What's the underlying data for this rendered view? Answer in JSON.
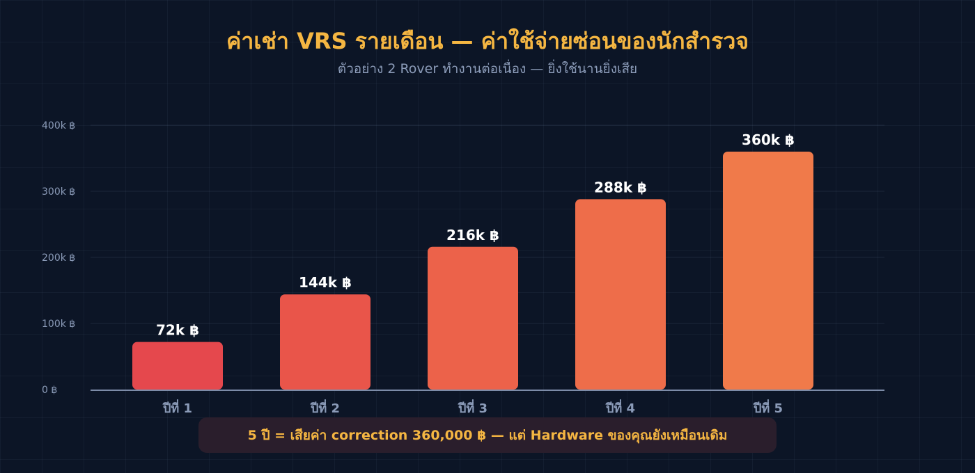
{
  "header": {
    "title": "ค่าเช่า VRS รายเดือน — ค่าใช้จ่ายซ่อนของนักสำรวจ",
    "subtitle": "ตัวอย่าง 2 Rover ทำงานต่อเนื่อง — ยิ่งใช้นานยิ่งเสีย"
  },
  "callout": {
    "text": "5 ปี = เสียค่า correction 360,000 ฿ — แต่ Hardware ของคุณยังเหมือนเดิม"
  },
  "colors": {
    "title": "#f5b642",
    "bar_start": "#e5484d",
    "bar_end": "#f07a4a"
  },
  "chart_data": {
    "type": "bar",
    "categories": [
      "ปีที่ 1",
      "ปีที่ 2",
      "ปีที่ 3",
      "ปีที่ 4",
      "ปีที่ 5"
    ],
    "values": [
      72000,
      144000,
      216000,
      288000,
      360000
    ],
    "value_labels": [
      "72k ฿",
      "144k ฿",
      "216k ฿",
      "288k ฿",
      "360k ฿"
    ],
    "bar_colors": [
      "#e5484d",
      "#e9554a",
      "#ec624a",
      "#ee6d4a",
      "#f07a4a"
    ],
    "ylim": [
      0,
      400000
    ],
    "yticks": [
      0,
      100000,
      200000,
      300000,
      400000
    ],
    "ytick_labels": [
      "0 ฿",
      "100k ฿",
      "200k ฿",
      "300k ฿",
      "400k ฿"
    ],
    "grid": true,
    "legend": "none"
  }
}
